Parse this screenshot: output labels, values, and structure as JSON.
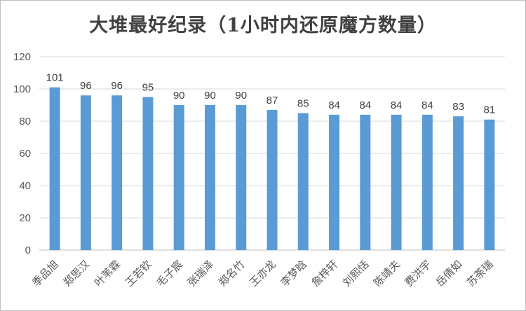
{
  "chart_data": {
    "type": "bar",
    "title": "大堆最好纪录（1小时内还原魔方数量）",
    "categories": [
      "季品旭",
      "郑思汉",
      "叶苇霖",
      "王若钦",
      "毛子宸",
      "张瑞泽",
      "郑名竹",
      "王亦龙",
      "李梦晗",
      "詹梓轩",
      "刘熙恬",
      "陈靖夫",
      "费洪宇",
      "岳倩如",
      "苏荼瑞"
    ],
    "values": [
      101,
      96,
      96,
      95,
      90,
      90,
      90,
      87,
      85,
      84,
      84,
      84,
      84,
      83,
      81
    ],
    "ylim": [
      0,
      120
    ],
    "yticks": [
      0,
      20,
      40,
      60,
      80,
      100,
      120
    ],
    "grid": true,
    "bar_color": "#5b9bd5",
    "grid_color": "#d9d9d9"
  }
}
